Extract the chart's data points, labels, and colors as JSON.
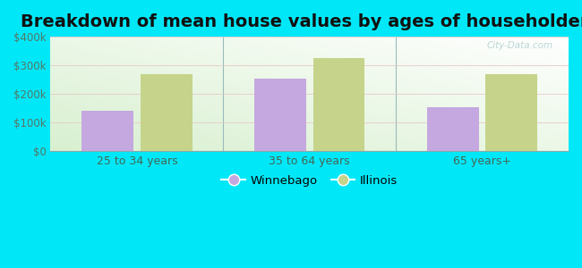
{
  "title": "Breakdown of mean house values by ages of householders",
  "categories": [
    "25 to 34 years",
    "35 to 64 years",
    "65 years+"
  ],
  "winnebago": [
    140000,
    255000,
    155000
  ],
  "illinois": [
    270000,
    325000,
    270000
  ],
  "winnebago_color": "#c4a8df",
  "illinois_color": "#c5d48a",
  "background_outer": "#00e8f8",
  "ylim": [
    0,
    400000
  ],
  "yticks": [
    0,
    100000,
    200000,
    300000,
    400000
  ],
  "ytick_labels": [
    "$0",
    "$100k",
    "$200k",
    "$300k",
    "$400k"
  ],
  "title_fontsize": 14,
  "legend_labels": [
    "Winnebago",
    "Illinois"
  ],
  "bar_width": 0.3,
  "watermark": "City-Data.com"
}
